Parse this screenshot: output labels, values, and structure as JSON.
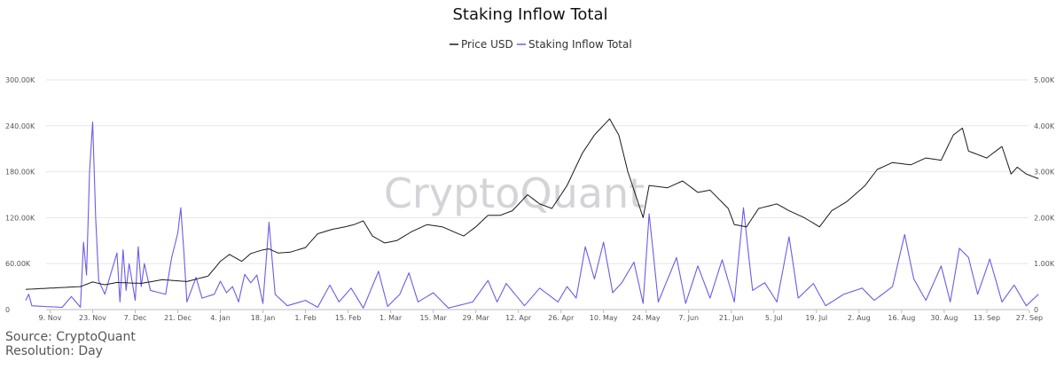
{
  "chart_data": {
    "type": "line",
    "title": "Staking Inflow Total",
    "legend_position": "top-center",
    "grid": "horizontal",
    "x_ticks": [
      "9. Nov",
      "23. Nov",
      "7. Dec",
      "21. Dec",
      "4. Jan",
      "18. Jan",
      "1. Feb",
      "15. Feb",
      "1. Mar",
      "15. Mar",
      "29. Mar",
      "12. Apr",
      "26. Apr",
      "10. May",
      "24. May",
      "7. Jun",
      "21. Jun",
      "5. Jul",
      "19. Jul",
      "2. Aug",
      "16. Aug",
      "30. Aug",
      "13. Sep",
      "27. Sep"
    ],
    "x_range": [
      "2020-11-01",
      "2021-09-30"
    ],
    "y_left": {
      "ticks": [
        "0",
        "60.00K",
        "120.00K",
        "180.00K",
        "240.00K",
        "300.00K"
      ],
      "range": [
        0,
        300000
      ]
    },
    "y_right": {
      "ticks": [
        "0",
        "1.00K",
        "2.00K",
        "3.00K",
        "4.00K",
        "5.00K"
      ],
      "range": [
        0,
        5000
      ]
    },
    "series": [
      {
        "name": "Price USD",
        "axis": "right",
        "color": "#1a1a1a",
        "anchor_points": [
          [
            "2020-11-01",
            440
          ],
          [
            "2020-11-10",
            470
          ],
          [
            "2020-11-19",
            500
          ],
          [
            "2020-11-23",
            600
          ],
          [
            "2020-11-27",
            540
          ],
          [
            "2020-12-01",
            590
          ],
          [
            "2020-12-09",
            570
          ],
          [
            "2020-12-16",
            650
          ],
          [
            "2020-12-24",
            610
          ],
          [
            "2020-12-31",
            730
          ],
          [
            "2021-01-04",
            1050
          ],
          [
            "2021-01-07",
            1200
          ],
          [
            "2021-01-11",
            1050
          ],
          [
            "2021-01-14",
            1220
          ],
          [
            "2021-01-18",
            1300
          ],
          [
            "2021-01-20",
            1320
          ],
          [
            "2021-01-23",
            1230
          ],
          [
            "2021-01-27",
            1250
          ],
          [
            "2021-02-01",
            1350
          ],
          [
            "2021-02-05",
            1650
          ],
          [
            "2021-02-10",
            1750
          ],
          [
            "2021-02-14",
            1800
          ],
          [
            "2021-02-17",
            1850
          ],
          [
            "2021-02-20",
            1930
          ],
          [
            "2021-02-23",
            1600
          ],
          [
            "2021-02-27",
            1450
          ],
          [
            "2021-03-03",
            1500
          ],
          [
            "2021-03-08",
            1700
          ],
          [
            "2021-03-13",
            1850
          ],
          [
            "2021-03-18",
            1800
          ],
          [
            "2021-03-25",
            1600
          ],
          [
            "2021-03-29",
            1800
          ],
          [
            "2021-04-02",
            2050
          ],
          [
            "2021-04-06",
            2050
          ],
          [
            "2021-04-10",
            2150
          ],
          [
            "2021-04-15",
            2500
          ],
          [
            "2021-04-19",
            2300
          ],
          [
            "2021-04-23",
            2200
          ],
          [
            "2021-04-28",
            2700
          ],
          [
            "2021-05-03",
            3400
          ],
          [
            "2021-05-07",
            3800
          ],
          [
            "2021-05-12",
            4150
          ],
          [
            "2021-05-15",
            3800
          ],
          [
            "2021-05-18",
            3000
          ],
          [
            "2021-05-23",
            2000
          ],
          [
            "2021-05-25",
            2700
          ],
          [
            "2021-05-31",
            2650
          ],
          [
            "2021-06-05",
            2800
          ],
          [
            "2021-06-10",
            2550
          ],
          [
            "2021-06-14",
            2600
          ],
          [
            "2021-06-20",
            2200
          ],
          [
            "2021-06-22",
            1850
          ],
          [
            "2021-06-26",
            1800
          ],
          [
            "2021-06-30",
            2200
          ],
          [
            "2021-07-06",
            2300
          ],
          [
            "2021-07-10",
            2150
          ],
          [
            "2021-07-15",
            2000
          ],
          [
            "2021-07-20",
            1800
          ],
          [
            "2021-07-24",
            2150
          ],
          [
            "2021-07-29",
            2350
          ],
          [
            "2021-08-04",
            2700
          ],
          [
            "2021-08-08",
            3050
          ],
          [
            "2021-08-13",
            3200
          ],
          [
            "2021-08-19",
            3150
          ],
          [
            "2021-08-24",
            3300
          ],
          [
            "2021-08-29",
            3250
          ],
          [
            "2021-09-02",
            3800
          ],
          [
            "2021-09-05",
            3950
          ],
          [
            "2021-09-07",
            3450
          ],
          [
            "2021-09-13",
            3300
          ],
          [
            "2021-09-18",
            3550
          ],
          [
            "2021-09-21",
            2950
          ],
          [
            "2021-09-23",
            3100
          ],
          [
            "2021-09-26",
            2950
          ],
          [
            "2021-09-30",
            2850
          ]
        ]
      },
      {
        "name": "Staking Inflow Total",
        "axis": "left",
        "color": "#6b5ce7",
        "anchor_points": [
          [
            "2020-11-01",
            12000
          ],
          [
            "2020-11-02",
            20000
          ],
          [
            "2020-11-03",
            5000
          ],
          [
            "2020-11-07",
            4000
          ],
          [
            "2020-11-13",
            3000
          ],
          [
            "2020-11-16",
            17000
          ],
          [
            "2020-11-19",
            3000
          ],
          [
            "2020-11-20",
            88000
          ],
          [
            "2020-11-21",
            45000
          ],
          [
            "2020-11-22",
            180000
          ],
          [
            "2020-11-23",
            245000
          ],
          [
            "2020-11-24",
            120000
          ],
          [
            "2020-11-25",
            38000
          ],
          [
            "2020-11-27",
            20000
          ],
          [
            "2020-12-01",
            74000
          ],
          [
            "2020-12-02",
            10000
          ],
          [
            "2020-12-03",
            78000
          ],
          [
            "2020-12-04",
            25000
          ],
          [
            "2020-12-05",
            60000
          ],
          [
            "2020-12-07",
            12000
          ],
          [
            "2020-12-08",
            82000
          ],
          [
            "2020-12-09",
            30000
          ],
          [
            "2020-12-10",
            60000
          ],
          [
            "2020-12-12",
            25000
          ],
          [
            "2020-12-17",
            20000
          ],
          [
            "2020-12-19",
            68000
          ],
          [
            "2020-12-21",
            100000
          ],
          [
            "2020-12-22",
            133000
          ],
          [
            "2020-12-23",
            75000
          ],
          [
            "2020-12-24",
            10000
          ],
          [
            "2020-12-27",
            42000
          ],
          [
            "2020-12-29",
            15000
          ],
          [
            "2021-01-02",
            20000
          ],
          [
            "2021-01-04",
            37000
          ],
          [
            "2021-01-06",
            22000
          ],
          [
            "2021-01-08",
            30000
          ],
          [
            "2021-01-10",
            10000
          ],
          [
            "2021-01-12",
            46000
          ],
          [
            "2021-01-14",
            35000
          ],
          [
            "2021-01-16",
            45000
          ],
          [
            "2021-01-18",
            8000
          ],
          [
            "2021-01-20",
            114000
          ],
          [
            "2021-01-22",
            20000
          ],
          [
            "2021-01-26",
            5000
          ],
          [
            "2021-02-01",
            12000
          ],
          [
            "2021-02-05",
            3000
          ],
          [
            "2021-02-09",
            32000
          ],
          [
            "2021-02-12",
            10000
          ],
          [
            "2021-02-16",
            28000
          ],
          [
            "2021-02-20",
            2000
          ],
          [
            "2021-02-25",
            50000
          ],
          [
            "2021-02-28",
            4000
          ],
          [
            "2021-03-04",
            20000
          ],
          [
            "2021-03-07",
            48000
          ],
          [
            "2021-03-10",
            10000
          ],
          [
            "2021-03-15",
            22000
          ],
          [
            "2021-03-20",
            2000
          ],
          [
            "2021-03-28",
            10000
          ],
          [
            "2021-04-02",
            38000
          ],
          [
            "2021-04-05",
            10000
          ],
          [
            "2021-04-08",
            34000
          ],
          [
            "2021-04-14",
            5000
          ],
          [
            "2021-04-19",
            28000
          ],
          [
            "2021-04-25",
            10000
          ],
          [
            "2021-04-28",
            30000
          ],
          [
            "2021-05-01",
            15000
          ],
          [
            "2021-05-04",
            82000
          ],
          [
            "2021-05-07",
            40000
          ],
          [
            "2021-05-10",
            88000
          ],
          [
            "2021-05-13",
            22000
          ],
          [
            "2021-05-16",
            35000
          ],
          [
            "2021-05-20",
            62000
          ],
          [
            "2021-05-23",
            8000
          ],
          [
            "2021-05-25",
            125000
          ],
          [
            "2021-05-28",
            10000
          ],
          [
            "2021-06-03",
            68000
          ],
          [
            "2021-06-06",
            8000
          ],
          [
            "2021-06-10",
            57000
          ],
          [
            "2021-06-14",
            15000
          ],
          [
            "2021-06-18",
            65000
          ],
          [
            "2021-06-22",
            10000
          ],
          [
            "2021-06-25",
            133000
          ],
          [
            "2021-06-28",
            25000
          ],
          [
            "2021-07-02",
            35000
          ],
          [
            "2021-07-06",
            10000
          ],
          [
            "2021-07-10",
            95000
          ],
          [
            "2021-07-13",
            15000
          ],
          [
            "2021-07-18",
            34000
          ],
          [
            "2021-07-22",
            5000
          ],
          [
            "2021-07-28",
            20000
          ],
          [
            "2021-08-03",
            28000
          ],
          [
            "2021-08-07",
            12000
          ],
          [
            "2021-08-13",
            30000
          ],
          [
            "2021-08-17",
            98000
          ],
          [
            "2021-08-20",
            40000
          ],
          [
            "2021-08-24",
            12000
          ],
          [
            "2021-08-29",
            57000
          ],
          [
            "2021-09-01",
            10000
          ],
          [
            "2021-09-04",
            80000
          ],
          [
            "2021-09-07",
            68000
          ],
          [
            "2021-09-10",
            20000
          ],
          [
            "2021-09-14",
            66000
          ],
          [
            "2021-09-18",
            10000
          ],
          [
            "2021-09-22",
            32000
          ],
          [
            "2021-09-26",
            5000
          ],
          [
            "2021-09-30",
            20000
          ]
        ]
      }
    ]
  },
  "watermark": "CryptoQuant",
  "footer": {
    "source": "Source: CryptoQuant",
    "resolution": "Resolution: Day"
  }
}
